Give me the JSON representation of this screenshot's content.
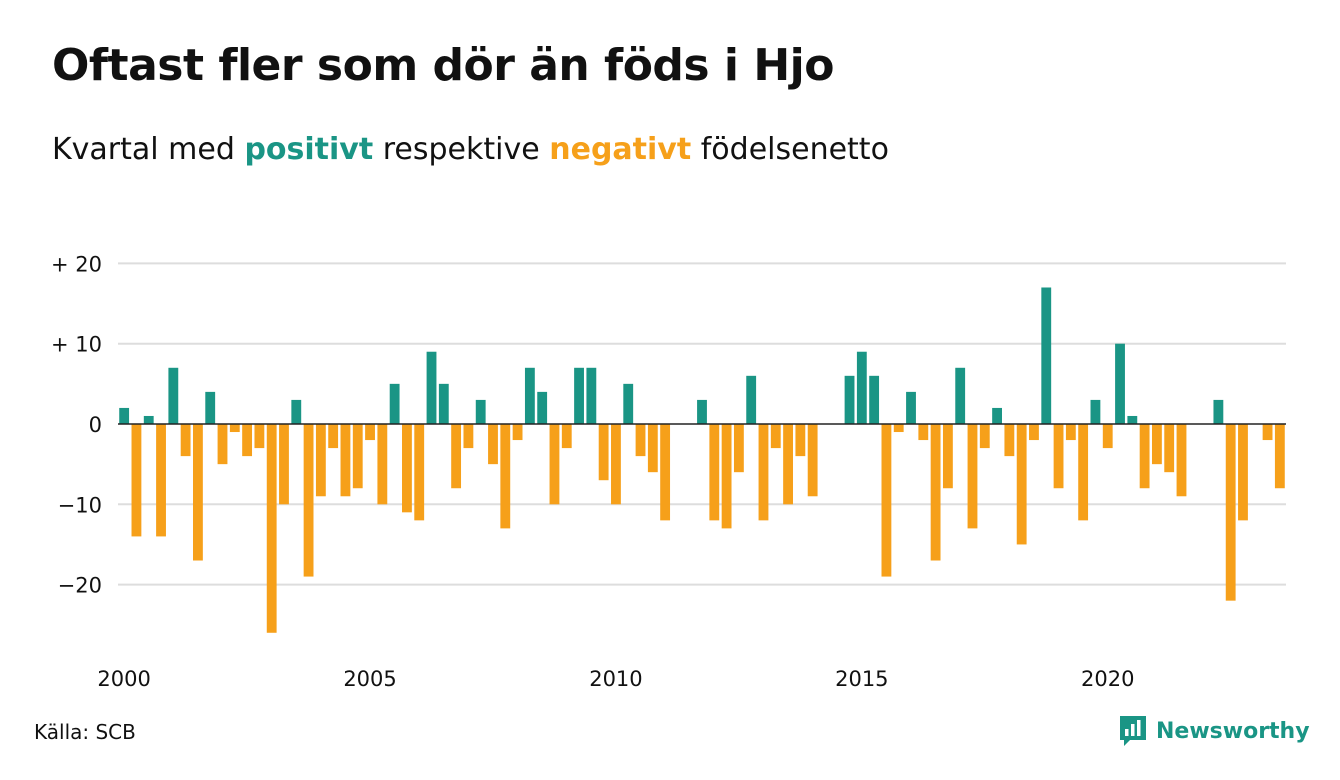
{
  "title": "Oftast fler som dör än föds i Hjo",
  "subtitle": {
    "prefix": "Kvartal med",
    "positive_word": "positivt",
    "middle": "respektive",
    "negative_word": "negativt",
    "suffix": "födelsenetto"
  },
  "source": "Källa: SCB",
  "brand": "Newsworthy",
  "icons": {
    "logo": "newsworthy-logo-icon"
  },
  "colors": {
    "positive": "#1a9585",
    "negative": "#f6a01a",
    "grid": "#dddddd",
    "text": "#111111"
  },
  "chart_data": {
    "type": "bar",
    "title": "Oftast fler som dör än föds i Hjo",
    "subtitle": "Kvartal med positivt respektive negativt födelsenetto",
    "xlabel": "",
    "ylabel": "",
    "start": "2000 Q1",
    "x_ticks": [
      2000,
      2005,
      2010,
      2015,
      2020
    ],
    "y_ticks": [
      20,
      10,
      0,
      -10,
      -20
    ],
    "y_tick_labels": [
      "+ 20",
      "+ 10",
      "0",
      "−10",
      "−20"
    ],
    "ylim": [
      -27,
      21
    ],
    "grid": true,
    "values": [
      2,
      -14,
      1,
      -14,
      7,
      -4,
      -17,
      4,
      -5,
      -1,
      -4,
      -3,
      -26,
      -10,
      3,
      -19,
      -9,
      -3,
      -9,
      -8,
      -2,
      -10,
      5,
      -11,
      -12,
      9,
      5,
      -8,
      -3,
      3,
      -5,
      -13,
      -2,
      7,
      4,
      -10,
      -3,
      7,
      7,
      -7,
      -10,
      5,
      -4,
      -6,
      -12,
      0,
      0,
      3,
      -12,
      -13,
      -6,
      6,
      -12,
      -3,
      -10,
      -4,
      -9,
      0,
      0,
      6,
      9,
      6,
      -19,
      -1,
      4,
      -2,
      -17,
      -8,
      7,
      -13,
      -3,
      2,
      -4,
      -15,
      -2,
      17,
      -8,
      -2,
      -12,
      3,
      -3,
      10,
      1,
      -8,
      -5,
      -6,
      -9,
      0,
      0,
      3,
      -22,
      -12,
      0,
      -2,
      -8
    ]
  }
}
